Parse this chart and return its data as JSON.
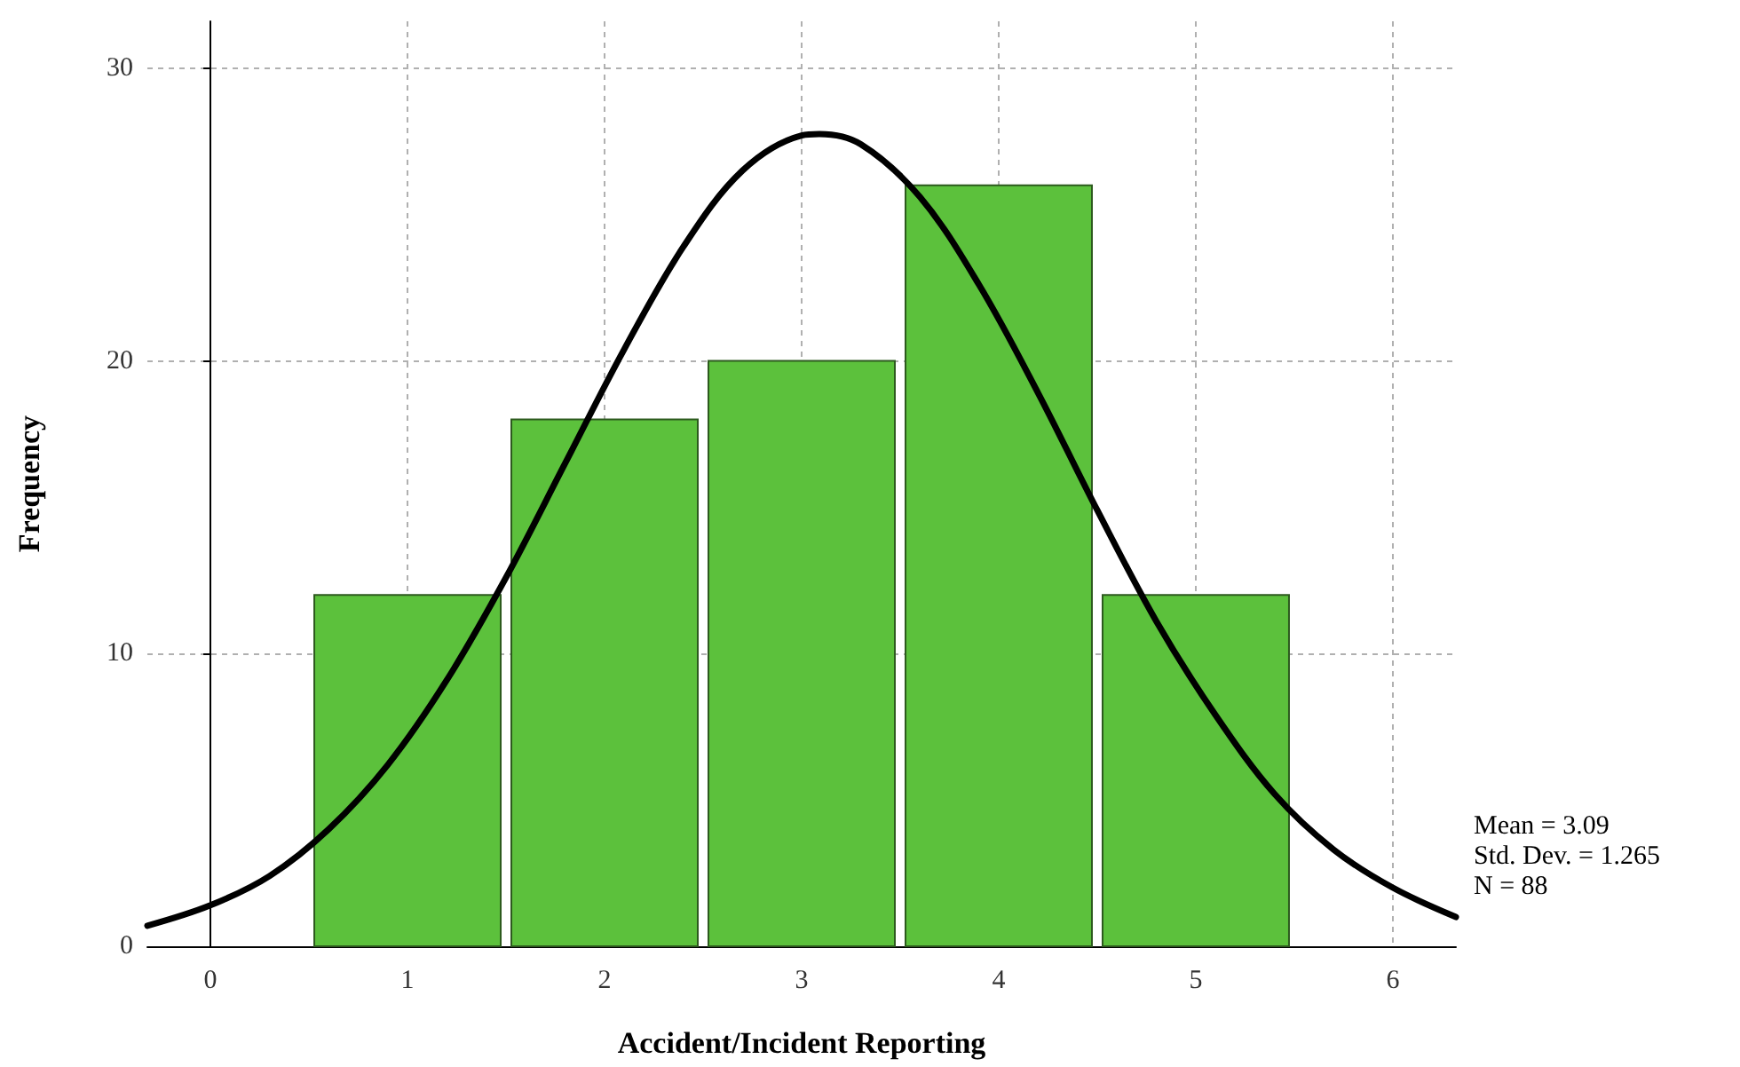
{
  "chart_data": {
    "type": "histogram",
    "xlabel": "Accident/Incident Reporting",
    "ylabel": "Frequency",
    "xlim": [
      -0.32,
      6.32
    ],
    "xticks": [
      0,
      1,
      2,
      3,
      4,
      5,
      6
    ],
    "ylim": [
      0,
      31.6
    ],
    "yticks": [
      0,
      10,
      20,
      30
    ],
    "grid": true,
    "series": [
      {
        "color": "#5cc13c",
        "bins": [
          0.5,
          1.5,
          2.5,
          3.5,
          4.5,
          5.5
        ],
        "values": [
          12,
          18,
          20,
          26,
          12
        ]
      },
      {
        "type": "line",
        "color": "#000000",
        "marker": "none",
        "line_style": "solid",
        "x": [
          -0.32,
          0,
          0.3,
          0.6,
          0.9,
          1.2,
          1.5,
          1.8,
          2.1,
          2.4,
          2.7,
          3.0,
          3.09,
          3.3,
          3.6,
          3.9,
          4.2,
          4.5,
          4.8,
          5.1,
          5.4,
          5.7,
          6.0,
          6.32
        ],
        "values": [
          0.7,
          1.4,
          2.4,
          4.0,
          6.2,
          9.1,
          12.6,
          16.5,
          20.4,
          23.9,
          26.5,
          27.7,
          27.75,
          27.4,
          25.6,
          22.6,
          18.9,
          14.9,
          11.1,
          7.9,
          5.2,
          3.3,
          2.0,
          1.0
        ]
      }
    ],
    "annotations": [
      "Mean = 3.09",
      "Std. Dev. = 1.265",
      "N = 88"
    ]
  }
}
